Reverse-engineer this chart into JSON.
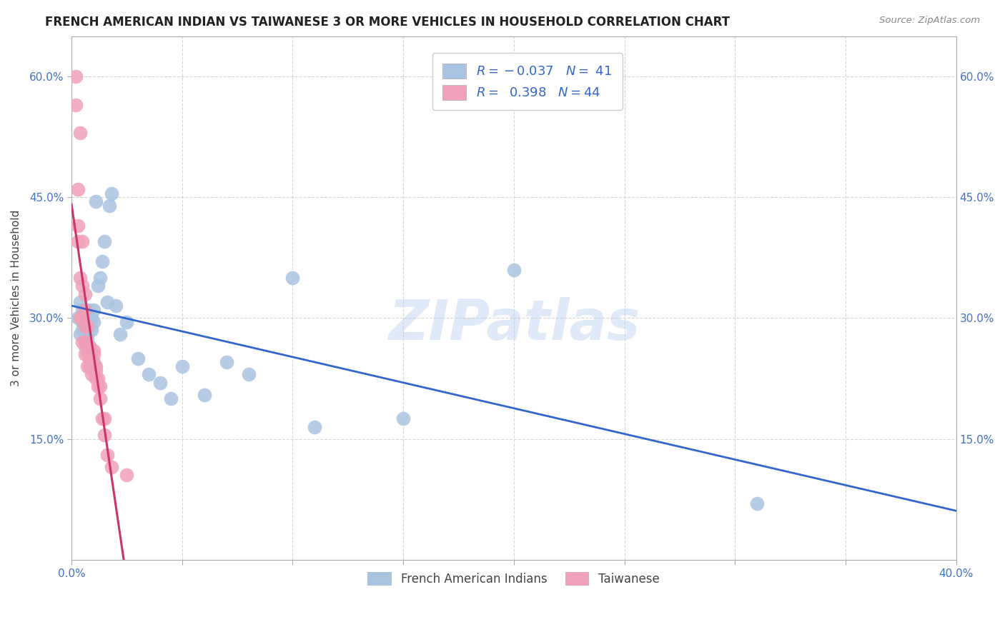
{
  "title": "FRENCH AMERICAN INDIAN VS TAIWANESE 3 OR MORE VEHICLES IN HOUSEHOLD CORRELATION CHART",
  "source": "Source: ZipAtlas.com",
  "ylabel": "3 or more Vehicles in Household",
  "xlim": [
    0.0,
    0.4
  ],
  "ylim": [
    0.0,
    0.65
  ],
  "xtick_values": [
    0.0,
    0.05,
    0.1,
    0.15,
    0.2,
    0.25,
    0.3,
    0.35,
    0.4
  ],
  "xtick_labels": [
    "0.0%",
    "",
    "",
    "",
    "",
    "",
    "",
    "",
    "40.0%"
  ],
  "ytick_values": [
    0.15,
    0.3,
    0.45,
    0.6
  ],
  "ytick_labels": [
    "15.0%",
    "30.0%",
    "45.0%",
    "60.0%"
  ],
  "blue_color": "#a8c4e0",
  "pink_color": "#f0a0b8",
  "blue_line_color": "#3366cc",
  "pink_line_color": "#cc3366",
  "watermark": "ZIPatlas",
  "legend_label_blue": "French American Indians",
  "legend_label_pink": "Taiwanese",
  "blue_scatter_x": [
    0.003,
    0.004,
    0.004,
    0.005,
    0.005,
    0.005,
    0.006,
    0.006,
    0.007,
    0.007,
    0.008,
    0.008,
    0.008,
    0.009,
    0.009,
    0.01,
    0.01,
    0.011,
    0.012,
    0.013,
    0.014,
    0.015,
    0.016,
    0.017,
    0.018,
    0.02,
    0.022,
    0.025,
    0.03,
    0.035,
    0.04,
    0.045,
    0.05,
    0.06,
    0.07,
    0.08,
    0.1,
    0.11,
    0.15,
    0.2,
    0.31
  ],
  "blue_scatter_y": [
    0.3,
    0.32,
    0.28,
    0.295,
    0.31,
    0.285,
    0.265,
    0.295,
    0.3,
    0.275,
    0.31,
    0.265,
    0.29,
    0.3,
    0.285,
    0.31,
    0.295,
    0.445,
    0.34,
    0.35,
    0.37,
    0.395,
    0.32,
    0.44,
    0.455,
    0.315,
    0.28,
    0.295,
    0.25,
    0.23,
    0.22,
    0.2,
    0.24,
    0.205,
    0.245,
    0.23,
    0.35,
    0.165,
    0.175,
    0.36,
    0.07
  ],
  "pink_scatter_x": [
    0.002,
    0.002,
    0.003,
    0.003,
    0.003,
    0.004,
    0.004,
    0.004,
    0.005,
    0.005,
    0.005,
    0.005,
    0.006,
    0.006,
    0.006,
    0.006,
    0.006,
    0.007,
    0.007,
    0.007,
    0.007,
    0.008,
    0.008,
    0.008,
    0.009,
    0.009,
    0.009,
    0.01,
    0.01,
    0.01,
    0.01,
    0.011,
    0.011,
    0.011,
    0.012,
    0.012,
    0.013,
    0.013,
    0.014,
    0.015,
    0.015,
    0.016,
    0.018,
    0.025
  ],
  "pink_scatter_y": [
    0.6,
    0.565,
    0.46,
    0.415,
    0.395,
    0.53,
    0.35,
    0.3,
    0.395,
    0.34,
    0.3,
    0.27,
    0.33,
    0.31,
    0.29,
    0.27,
    0.255,
    0.29,
    0.265,
    0.26,
    0.24,
    0.265,
    0.25,
    0.24,
    0.255,
    0.24,
    0.23,
    0.26,
    0.255,
    0.245,
    0.235,
    0.24,
    0.235,
    0.225,
    0.225,
    0.215,
    0.215,
    0.2,
    0.175,
    0.175,
    0.155,
    0.13,
    0.115,
    0.105
  ],
  "blue_R": -0.037,
  "pink_R": 0.398
}
